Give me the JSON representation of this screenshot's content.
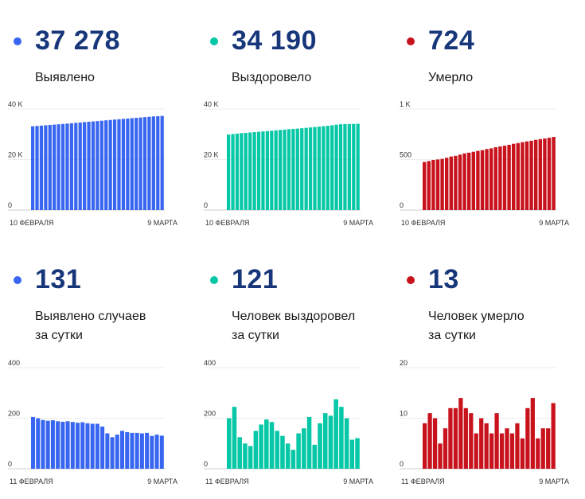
{
  "colors": {
    "blue": "#3866f0",
    "teal": "#06c7a6",
    "red": "#c8131d",
    "number": "#17377a"
  },
  "panels": [
    {
      "number": "37 278",
      "label": [
        "Выявлено"
      ],
      "color": "blue"
    },
    {
      "number": "34 190",
      "label": [
        "Выздоровело"
      ],
      "color": "teal"
    },
    {
      "number": "724",
      "label": [
        "Умерло"
      ],
      "color": "red"
    },
    {
      "number": "131",
      "label": [
        "Выявлено случаев",
        "за сутки"
      ],
      "color": "blue"
    },
    {
      "number": "121",
      "label": [
        "Человек выздоровел",
        "за сутки"
      ],
      "color": "teal"
    },
    {
      "number": "13",
      "label": [
        "Человек умерло",
        "за сутки"
      ],
      "color": "red"
    }
  ],
  "chart_data": [
    {
      "type": "bar",
      "ylim": [
        0,
        40000
      ],
      "yticks": [
        0,
        20000,
        40000
      ],
      "yticklabels": [
        "0",
        "20 K",
        "40 K"
      ],
      "xticklabels": [
        "10 ФЕВРАЛЯ",
        "9 МАРТА"
      ],
      "values": [
        33170,
        33300,
        33430,
        33560,
        33700,
        33830,
        33960,
        34090,
        34230,
        34370,
        34520,
        34670,
        34810,
        34960,
        35090,
        35230,
        35380,
        35530,
        35670,
        35820,
        35960,
        36100,
        36240,
        36380,
        36520,
        36660,
        36800,
        36940,
        37070,
        37150,
        37278
      ]
    },
    {
      "type": "bar",
      "ylim": [
        0,
        40000
      ],
      "yticks": [
        0,
        20000,
        40000
      ],
      "yticklabels": [
        "0",
        "20 K",
        "40 K"
      ],
      "xticklabels": [
        "10 ФЕВРАЛЯ",
        "9 МАРТА"
      ],
      "values": [
        29900,
        30100,
        30300,
        30450,
        30550,
        30700,
        30830,
        30970,
        31120,
        31270,
        31410,
        31560,
        31720,
        31870,
        32020,
        32150,
        32240,
        32390,
        32550,
        32700,
        32870,
        33030,
        33190,
        33370,
        33570,
        33810,
        33960,
        34050,
        34090,
        34120,
        34190
      ]
    },
    {
      "type": "bar",
      "ylim": [
        0,
        1000
      ],
      "yticks": [
        0,
        500,
        1000
      ],
      "yticklabels": [
        "0",
        "500",
        "1 K"
      ],
      "xticklabels": [
        "10 ФЕВРАЛЯ",
        "9 МАРТА"
      ],
      "values": [
        476,
        485,
        496,
        501,
        507,
        518,
        530,
        537,
        549,
        561,
        568,
        577,
        586,
        593,
        604,
        611,
        622,
        630,
        637,
        646,
        656,
        663,
        672,
        680,
        686,
        695,
        702,
        708,
        716,
        724
      ]
    },
    {
      "type": "bar",
      "ylim": [
        0,
        400
      ],
      "yticks": [
        0,
        200,
        400
      ],
      "yticklabels": [
        "0",
        "200",
        "400"
      ],
      "xticklabels": [
        "11 ФЕВРАЛЯ",
        "9 МАРТА"
      ],
      "values": [
        205,
        200,
        193,
        190,
        192,
        188,
        186,
        188,
        185,
        182,
        184,
        180,
        178,
        178,
        167,
        140,
        125,
        135,
        150,
        145,
        142,
        142,
        140,
        142,
        130,
        135,
        131
      ]
    },
    {
      "type": "bar",
      "ylim": [
        0,
        400
      ],
      "yticks": [
        0,
        200,
        400
      ],
      "yticklabels": [
        "0",
        "200",
        "400"
      ],
      "xticklabels": [
        "11 ФЕВРАЛЯ",
        "9 МАРТА"
      ],
      "values": [
        200,
        245,
        125,
        100,
        90,
        150,
        175,
        195,
        185,
        150,
        130,
        100,
        75,
        140,
        160,
        205,
        95,
        180,
        220,
        210,
        275,
        245,
        200,
        115,
        121
      ]
    },
    {
      "type": "bar",
      "ylim": [
        0,
        20
      ],
      "yticks": [
        0,
        10,
        20
      ],
      "yticklabels": [
        "0",
        "10",
        "20"
      ],
      "xticklabels": [
        "11 ФЕВРАЛЯ",
        "9 МАРТА"
      ],
      "values": [
        9,
        11,
        10,
        5,
        8,
        12,
        12,
        14,
        12,
        11,
        7,
        10,
        9,
        7,
        11,
        7,
        8,
        7,
        9,
        6,
        12,
        14,
        6,
        8,
        8,
        13
      ]
    }
  ]
}
